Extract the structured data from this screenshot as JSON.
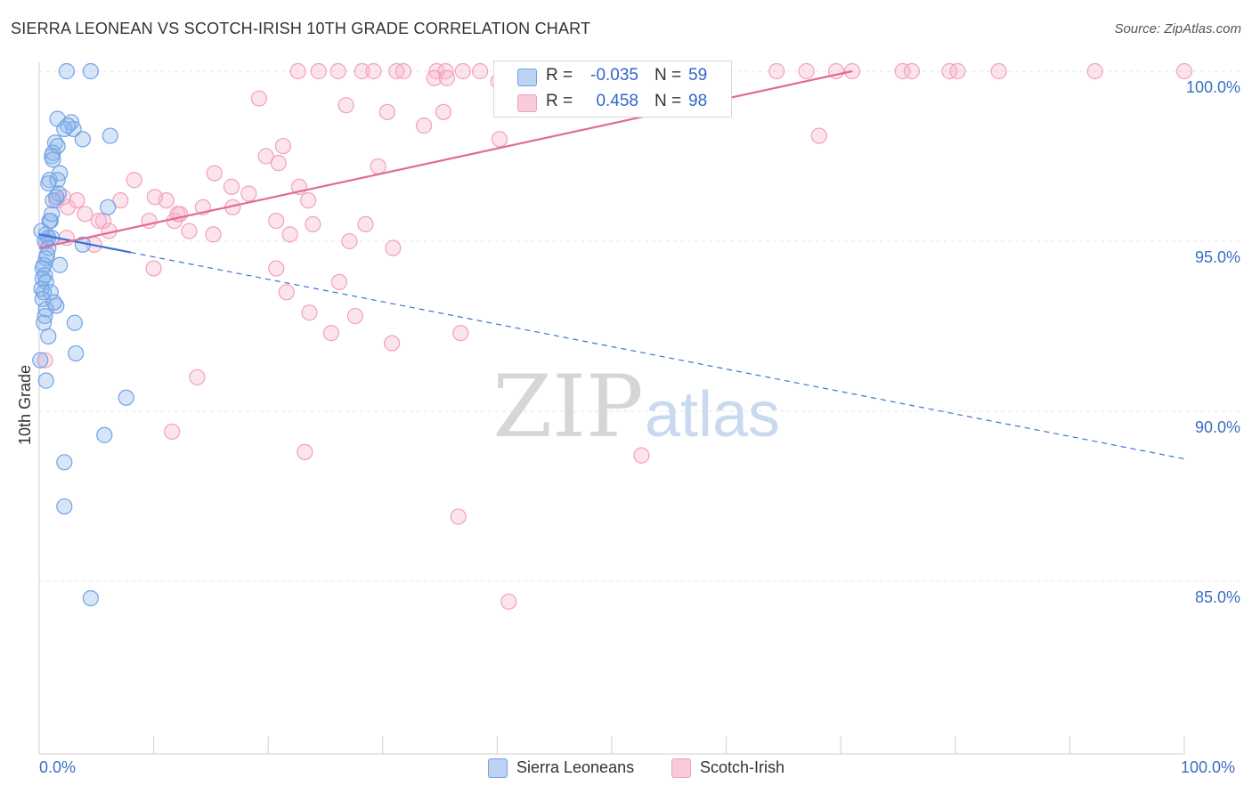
{
  "title": "SIERRA LEONEAN VS SCOTCH-IRISH 10TH GRADE CORRELATION CHART",
  "source": "Source: ZipAtlas.com",
  "watermark": {
    "zip": "ZIP",
    "atlas": "atlas"
  },
  "colors": {
    "blue": "#6fa3e6",
    "blue_line": "#3a74d4",
    "pink": "#f2a0bc",
    "pink_line": "#e06b96",
    "axis_text": "#3a6fc4"
  },
  "legend": {
    "series1": {
      "r_label": "R =",
      "r_value": "-0.035",
      "n_label": "N =",
      "n_value": "59"
    },
    "series2": {
      "r_label": "R =",
      "r_value": "0.458",
      "n_label": "N =",
      "n_value": "98"
    }
  },
  "bottom_legend": {
    "series1": "Sierra Leoneans",
    "series2": "Scotch-Irish"
  },
  "x_axis": {
    "min_label": "0.0%",
    "max_label": "100.0%"
  },
  "chart_data": {
    "type": "scatter",
    "title": "SIERRA LEONEAN VS SCOTCH-IRISH 10TH GRADE CORRELATION CHART",
    "xlabel": "",
    "ylabel": "10th Grade",
    "xlim": [
      0,
      100
    ],
    "ylim": [
      80.2,
      100.6
    ],
    "y_ticks": [
      {
        "value": 100,
        "label": "100.0%"
      },
      {
        "value": 95,
        "label": "95.0%"
      },
      {
        "value": 90,
        "label": "90.0%"
      },
      {
        "value": 85,
        "label": "85.0%"
      }
    ],
    "grid": true,
    "series": [
      {
        "name": "Sierra Leoneans",
        "color": "#6fa3e6",
        "trend": {
          "x1": 0,
          "y1": 95.2,
          "x2": 100,
          "y2": 88.6,
          "solid_until": 8
        },
        "points": [
          [
            2.4,
            100
          ],
          [
            4.5,
            100
          ],
          [
            1.6,
            98.6
          ],
          [
            2.8,
            98.5
          ],
          [
            3,
            98.3
          ],
          [
            2.2,
            98.3
          ],
          [
            6.2,
            98.1
          ],
          [
            3.8,
            98
          ],
          [
            1.4,
            97.9
          ],
          [
            1.6,
            97.8
          ],
          [
            1.2,
            97.6
          ],
          [
            1.1,
            97.5
          ],
          [
            1.2,
            97.4
          ],
          [
            1.8,
            97
          ],
          [
            0.9,
            96.8
          ],
          [
            1.6,
            96.8
          ],
          [
            0.8,
            96.7
          ],
          [
            1.7,
            96.4
          ],
          [
            1.2,
            96.2
          ],
          [
            6,
            96
          ],
          [
            1,
            95.6
          ],
          [
            0.6,
            95.2
          ],
          [
            0.8,
            95.1
          ],
          [
            1.1,
            95.1
          ],
          [
            0.5,
            95
          ],
          [
            3.8,
            94.9
          ],
          [
            0.8,
            94.8
          ],
          [
            0.6,
            94.5
          ],
          [
            0.4,
            94.3
          ],
          [
            0.3,
            94.2
          ],
          [
            1.8,
            94.3
          ],
          [
            0.5,
            94
          ],
          [
            0.3,
            93.9
          ],
          [
            0.6,
            93.8
          ],
          [
            0.2,
            93.6
          ],
          [
            0.4,
            93.5
          ],
          [
            1,
            93.5
          ],
          [
            0.3,
            93.3
          ],
          [
            1.5,
            93.1
          ],
          [
            0.6,
            93
          ],
          [
            0.5,
            92.8
          ],
          [
            0.4,
            92.6
          ],
          [
            3.1,
            92.6
          ],
          [
            3.2,
            91.7
          ],
          [
            0.1,
            91.5
          ],
          [
            0.6,
            90.9
          ],
          [
            7.6,
            90.4
          ],
          [
            5.7,
            89.3
          ],
          [
            2.2,
            88.5
          ],
          [
            2.2,
            87.2
          ],
          [
            4.5,
            84.5
          ],
          [
            0.8,
            92.2
          ],
          [
            1.5,
            96.3
          ],
          [
            0.9,
            95.6
          ],
          [
            2.5,
            98.4
          ],
          [
            0.7,
            94.6
          ],
          [
            1.3,
            93.2
          ],
          [
            0.2,
            95.3
          ],
          [
            1.1,
            95.8
          ]
        ]
      },
      {
        "name": "Scotch-Irish",
        "color": "#f2a0bc",
        "trend": {
          "x1": 0,
          "y1": 94.8,
          "x2": 71,
          "y2": 100
        },
        "points": [
          [
            22.6,
            100
          ],
          [
            24.4,
            100
          ],
          [
            26.1,
            100
          ],
          [
            28.2,
            100
          ],
          [
            29.2,
            100
          ],
          [
            31.2,
            100
          ],
          [
            31.8,
            100
          ],
          [
            34.7,
            100
          ],
          [
            35.5,
            100
          ],
          [
            37,
            100
          ],
          [
            38.5,
            100
          ],
          [
            41.3,
            100
          ],
          [
            42.6,
            100
          ],
          [
            43.6,
            100
          ],
          [
            44.4,
            100
          ],
          [
            46.4,
            100
          ],
          [
            48.8,
            100
          ],
          [
            51.8,
            100
          ],
          [
            53.5,
            100
          ],
          [
            55.7,
            100
          ],
          [
            57.6,
            100
          ],
          [
            64.4,
            100
          ],
          [
            67,
            100
          ],
          [
            69.6,
            100
          ],
          [
            71,
            100
          ],
          [
            75.4,
            100
          ],
          [
            76.2,
            100
          ],
          [
            79.5,
            100
          ],
          [
            80.2,
            100
          ],
          [
            83.8,
            100
          ],
          [
            92.2,
            100
          ],
          [
            100,
            100
          ],
          [
            34.5,
            99.8
          ],
          [
            35.6,
            99.8
          ],
          [
            40.1,
            99.7
          ],
          [
            48.9,
            100
          ],
          [
            49.2,
            100
          ],
          [
            33.6,
            98.4
          ],
          [
            30.4,
            98.8
          ],
          [
            19.2,
            99.2
          ],
          [
            26.8,
            99
          ],
          [
            35.3,
            98.8
          ],
          [
            40.2,
            98
          ],
          [
            68.1,
            98.1
          ],
          [
            21.3,
            97.8
          ],
          [
            19.8,
            97.5
          ],
          [
            20.9,
            97.3
          ],
          [
            29.6,
            97.2
          ],
          [
            15.3,
            97
          ],
          [
            8.3,
            96.8
          ],
          [
            16.8,
            96.6
          ],
          [
            18.3,
            96.4
          ],
          [
            23.5,
            96.2
          ],
          [
            11.1,
            96.2
          ],
          [
            14.3,
            96
          ],
          [
            16.9,
            96
          ],
          [
            12.1,
            95.8
          ],
          [
            9.6,
            95.6
          ],
          [
            11.8,
            95.6
          ],
          [
            20.7,
            95.6
          ],
          [
            23.9,
            95.5
          ],
          [
            28.5,
            95.5
          ],
          [
            6.1,
            95.3
          ],
          [
            13.1,
            95.3
          ],
          [
            15.2,
            95.2
          ],
          [
            21.9,
            95.2
          ],
          [
            27.1,
            95
          ],
          [
            2.4,
            95.1
          ],
          [
            4.8,
            94.9
          ],
          [
            30.9,
            94.8
          ],
          [
            10,
            94.2
          ],
          [
            20.7,
            94.2
          ],
          [
            26.2,
            93.8
          ],
          [
            21.6,
            93.5
          ],
          [
            27.6,
            92.8
          ],
          [
            23.6,
            92.9
          ],
          [
            25.5,
            92.3
          ],
          [
            30.8,
            92
          ],
          [
            36.8,
            92.3
          ],
          [
            13.8,
            91
          ],
          [
            11.6,
            89.4
          ],
          [
            23.2,
            88.8
          ],
          [
            52.6,
            88.7
          ],
          [
            36.6,
            86.9
          ],
          [
            41,
            84.4
          ],
          [
            1.5,
            96.2
          ],
          [
            2.5,
            96
          ],
          [
            4,
            95.8
          ],
          [
            5.6,
            95.6
          ],
          [
            7.1,
            96.2
          ],
          [
            3.3,
            96.2
          ],
          [
            5.2,
            95.6
          ],
          [
            10.1,
            96.3
          ],
          [
            22.7,
            96.6
          ],
          [
            2.1,
            96.3
          ],
          [
            12.3,
            95.8
          ],
          [
            0.5,
            91.5
          ],
          [
            0.7,
            95
          ]
        ]
      }
    ]
  }
}
